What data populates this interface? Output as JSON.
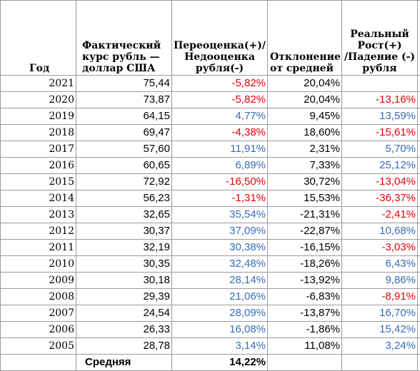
{
  "colors": {
    "positive": "#3a6cb5",
    "negative": "#e8000b",
    "text": "#000000",
    "grid": "#9a9a9a"
  },
  "headers": {
    "year": "Год",
    "actual_rate": "Фактический\nкурс рубль —\nдоллар США",
    "over_under": "Переоценка(+)/\nНедооценка\nрубля(-)",
    "deviation": "Отклонение\nот средней",
    "real_growth": "Реальный\nРост(+)\n/Падение (-)\nрубля"
  },
  "rows": [
    {
      "year": "2021",
      "rate": "75,44",
      "over": "-5,82%",
      "dev": "20,04%",
      "real": ""
    },
    {
      "year": "2020",
      "rate": "73,87",
      "over": "-5,82%",
      "dev": "20,04%",
      "real": "-13,16%"
    },
    {
      "year": "2019",
      "rate": "64,15",
      "over": "4,77%",
      "dev": "9,45%",
      "real": "13,59%"
    },
    {
      "year": "2018",
      "rate": "69,47",
      "over": "-4,38%",
      "dev": "18,60%",
      "real": "-15,61%"
    },
    {
      "year": "2017",
      "rate": "57,60",
      "over": "11,91%",
      "dev": "2,31%",
      "real": "5,70%"
    },
    {
      "year": "2016",
      "rate": "60,65",
      "over": "6,89%",
      "dev": "7,33%",
      "real": "25,12%"
    },
    {
      "year": "2015",
      "rate": "72,92",
      "over": "-16,50%",
      "dev": "30,72%",
      "real": "-13,04%"
    },
    {
      "year": "2014",
      "rate": "56,23",
      "over": "-1,31%",
      "dev": "15,53%",
      "real": "-36,37%"
    },
    {
      "year": "2013",
      "rate": "32,65",
      "over": "35,54%",
      "dev": "-21,31%",
      "real": "-2,41%"
    },
    {
      "year": "2012",
      "rate": "30,37",
      "over": "37,09%",
      "dev": "-22,87%",
      "real": "10,68%"
    },
    {
      "year": "2011",
      "rate": "32,19",
      "over": "30,38%",
      "dev": "-16,15%",
      "real": "-3,03%"
    },
    {
      "year": "2010",
      "rate": "30,35",
      "over": "32,48%",
      "dev": "-18,26%",
      "real": "6,43%"
    },
    {
      "year": "2009",
      "rate": "30,18",
      "over": "28,14%",
      "dev": "-13,92%",
      "real": "9,86%"
    },
    {
      "year": "2008",
      "rate": "29,39",
      "over": "21,06%",
      "dev": "-6,83%",
      "real": "-8,91%"
    },
    {
      "year": "2007",
      "rate": "24,54",
      "over": "28,09%",
      "dev": "-13,87%",
      "real": "16,70%"
    },
    {
      "year": "2006",
      "rate": "26,33",
      "over": "16,08%",
      "dev": "-1,86%",
      "real": "15,42%"
    },
    {
      "year": "2005",
      "rate": "28,78",
      "over": "3,14%",
      "dev": "11,08%",
      "real": "3,24%"
    }
  ],
  "footer": {
    "label": "Средняя",
    "value": "14,22%"
  }
}
